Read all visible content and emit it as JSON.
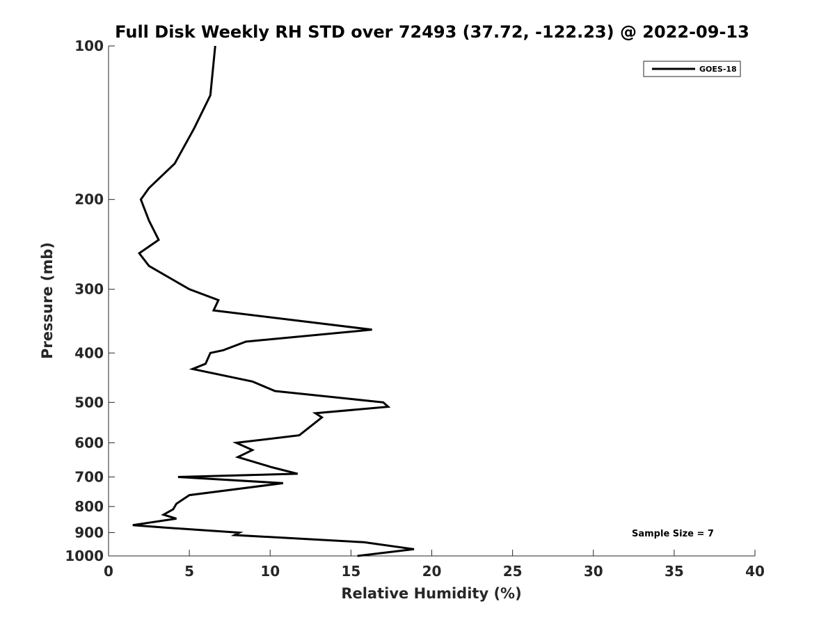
{
  "chart_data": {
    "type": "line",
    "title": "Full Disk Weekly RH STD over 72493 (37.72, -122.23) @ 2022-09-13",
    "xlabel": "Relative Humidity (%)",
    "ylabel": "Pressure (mb)",
    "xlim": [
      0,
      40
    ],
    "ylim": [
      100,
      1000
    ],
    "y_scale": "log",
    "y_direction": "reversed",
    "x_ticks": [
      0,
      5,
      10,
      15,
      20,
      25,
      30,
      35,
      40
    ],
    "y_ticks": [
      100,
      200,
      300,
      400,
      500,
      600,
      700,
      800,
      900,
      1000
    ],
    "grid": false,
    "legend_position": "top-right",
    "annotation": "Sample Size = 7",
    "colors": {
      "line": "#000000",
      "axis": "#262626",
      "background": "#ffffff"
    },
    "series": [
      {
        "name": "GOES-18",
        "x": [
          6.6,
          6.3,
          5.3,
          4.1,
          2.5,
          2.0,
          2.5,
          3.1,
          1.9,
          2.5,
          5.0,
          6.8,
          6.5,
          16.3,
          8.5,
          7.1,
          6.3,
          6.0,
          5.2,
          8.9,
          10.3,
          17.0,
          17.3,
          12.8,
          13.2,
          11.8,
          7.9,
          8.9,
          8.0,
          10.1,
          11.7,
          4.3,
          10.8,
          5.0,
          4.2,
          4.0,
          3.4,
          4.2,
          1.5,
          3.5,
          8.1,
          7.8,
          15.8,
          18.9,
          15.4
        ],
        "y": [
          100,
          125,
          145,
          170,
          190,
          200,
          220,
          240,
          255,
          270,
          300,
          315,
          330,
          360,
          380,
          395,
          400,
          420,
          430,
          455,
          475,
          500,
          510,
          525,
          535,
          580,
          600,
          620,
          640,
          670,
          690,
          700,
          720,
          760,
          790,
          810,
          830,
          845,
          870,
          880,
          900,
          910,
          940,
          970,
          1000
        ]
      }
    ]
  }
}
